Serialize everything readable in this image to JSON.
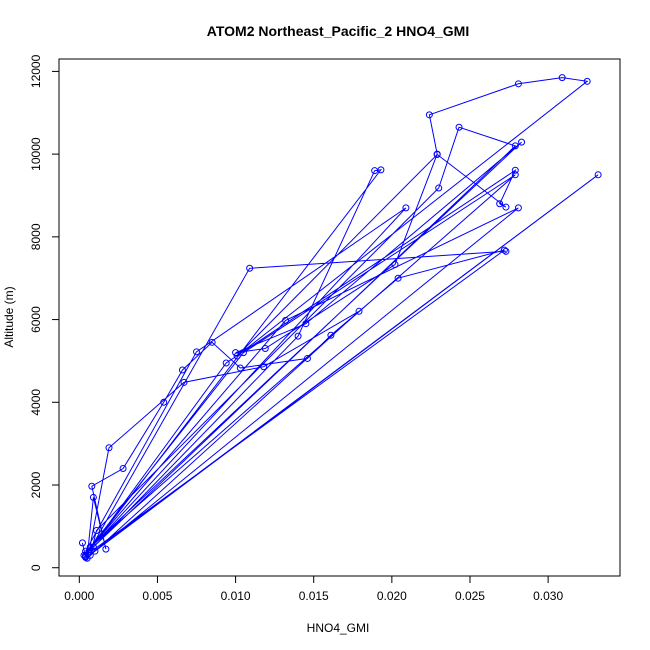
{
  "chart_data": {
    "type": "line",
    "title": "ATOM2 Northeast_Pacific_2 HNO4_GMI",
    "xlabel": "HNO4_GMI",
    "ylabel": "Altitude (m)",
    "xlim": [
      -0.0013,
      0.0346
    ],
    "ylim": [
      -200,
      12300
    ],
    "x_ticks": [
      0.0,
      0.005,
      0.01,
      0.015,
      0.02,
      0.025,
      0.03
    ],
    "x_tick_labels": [
      "0.000",
      "0.005",
      "0.010",
      "0.015",
      "0.020",
      "0.025",
      "0.030"
    ],
    "y_ticks": [
      0,
      2000,
      4000,
      6000,
      8000,
      10000,
      12000
    ],
    "y_tick_labels": [
      "0",
      "2000",
      "4000",
      "6000",
      "8000",
      "10000",
      "12000"
    ],
    "series_color": "#0000ff",
    "marker": "open-circle",
    "series": [
      {
        "x": [
          0.0002,
          0.0004,
          0.0005,
          0.0009,
          0.0017,
          0.0008,
          0.0028,
          0.0054,
          0.0066,
          0.0085,
          0.0103,
          0.0146,
          0.0161,
          0.0204,
          0.0272,
          0.0006,
          0.0019,
          0.0067,
          0.0118,
          0.0179,
          0.0007,
          0.0011,
          0.023,
          0.0243,
          0.0279,
          0.0009,
          0.014,
          0.0189,
          0.0193,
          0.0004,
          0.0094,
          0.0279,
          0.0269,
          0.0273,
          0.0229,
          0.0101,
          0.0325,
          0.0309,
          0.0281,
          0.0224,
          0.0229,
          0.0202,
          0.0119,
          0.01,
          0.0145,
          0.0283,
          0.0007,
          0.0105,
          0.0279,
          0.0004,
          0.0075,
          0.0209,
          0.0003,
          0.0132,
          0.0281,
          0.001,
          0.0332,
          0.0004,
          0.0109,
          0.0273
        ],
        "y": [
          600,
          270,
          230,
          1700,
          450,
          1970,
          2400,
          4000,
          4780,
          5450,
          4830,
          5060,
          5620,
          7000,
          7680,
          350,
          2900,
          4480,
          4860,
          6200,
          300,
          900,
          9180,
          10650,
          10200,
          500,
          5600,
          9600,
          9620,
          300,
          4950,
          9610,
          8800,
          8720,
          9990,
          5120,
          11760,
          11850,
          11700,
          10950,
          10000,
          7330,
          5300,
          5200,
          5900,
          10290,
          500,
          5200,
          9500,
          400,
          5220,
          8700,
          300,
          5980,
          8700,
          400,
          9500,
          250,
          7240,
          7650
        ]
      }
    ]
  }
}
